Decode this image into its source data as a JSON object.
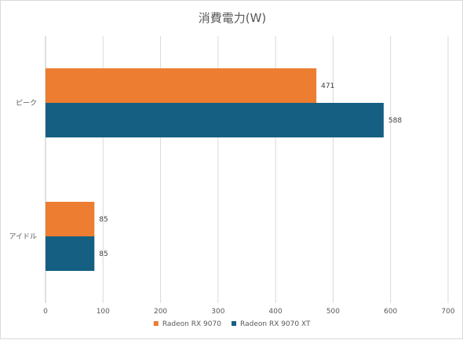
{
  "chart_data": {
    "type": "bar",
    "orientation": "horizontal",
    "title": "消費電力(W)",
    "categories": [
      "ピーク",
      "アイドル"
    ],
    "series": [
      {
        "name": "Radeon RX 9070",
        "values": [
          471,
          85
        ],
        "color": "#ed7d31"
      },
      {
        "name": "Radeon RX 9070 XT",
        "values": [
          588,
          85
        ],
        "color": "#156082"
      }
    ],
    "xlim": [
      0,
      700
    ],
    "xticks": [
      0,
      100,
      200,
      300,
      400,
      500,
      600,
      700
    ],
    "xlabel": "",
    "ylabel": "",
    "grid": "vertical",
    "legend": "bottom",
    "data_labels": true
  }
}
